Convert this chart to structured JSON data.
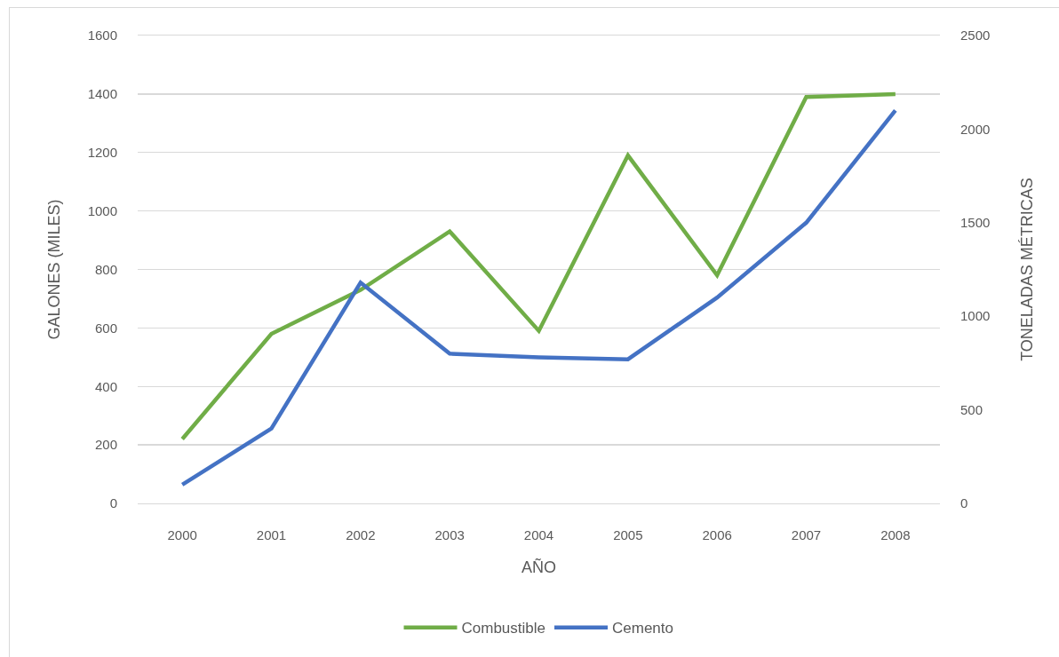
{
  "chart_data": {
    "type": "line",
    "xlabel": "AÑO",
    "ylabel": "GALONES (MILES)",
    "y2label": "TONELADAS MÉTRICAS",
    "categories": [
      "2000",
      "2001",
      "2002",
      "2003",
      "2004",
      "2005",
      "2006",
      "2007",
      "2008"
    ],
    "series": [
      {
        "name": "Combustible",
        "color": "#70ad47",
        "values": [
          220,
          580,
          730,
          930,
          590,
          1190,
          780,
          1390,
          1400
        ]
      },
      {
        "name": "Cemento",
        "color": "#4472c4",
        "axis": "y2",
        "values": [
          100,
          400,
          1180,
          800,
          780,
          770,
          1100,
          1500,
          2100
        ]
      }
    ],
    "ylim": [
      0,
      1600
    ],
    "yticks": [
      0,
      200,
      400,
      600,
      800,
      1000,
      1200,
      1400,
      1600
    ],
    "y2lim": [
      0,
      2500
    ],
    "y2ticks": [
      0,
      500,
      1000,
      1500,
      2000,
      2500
    ],
    "grid": "y",
    "legend": "bottom",
    "line_style": "solid"
  }
}
